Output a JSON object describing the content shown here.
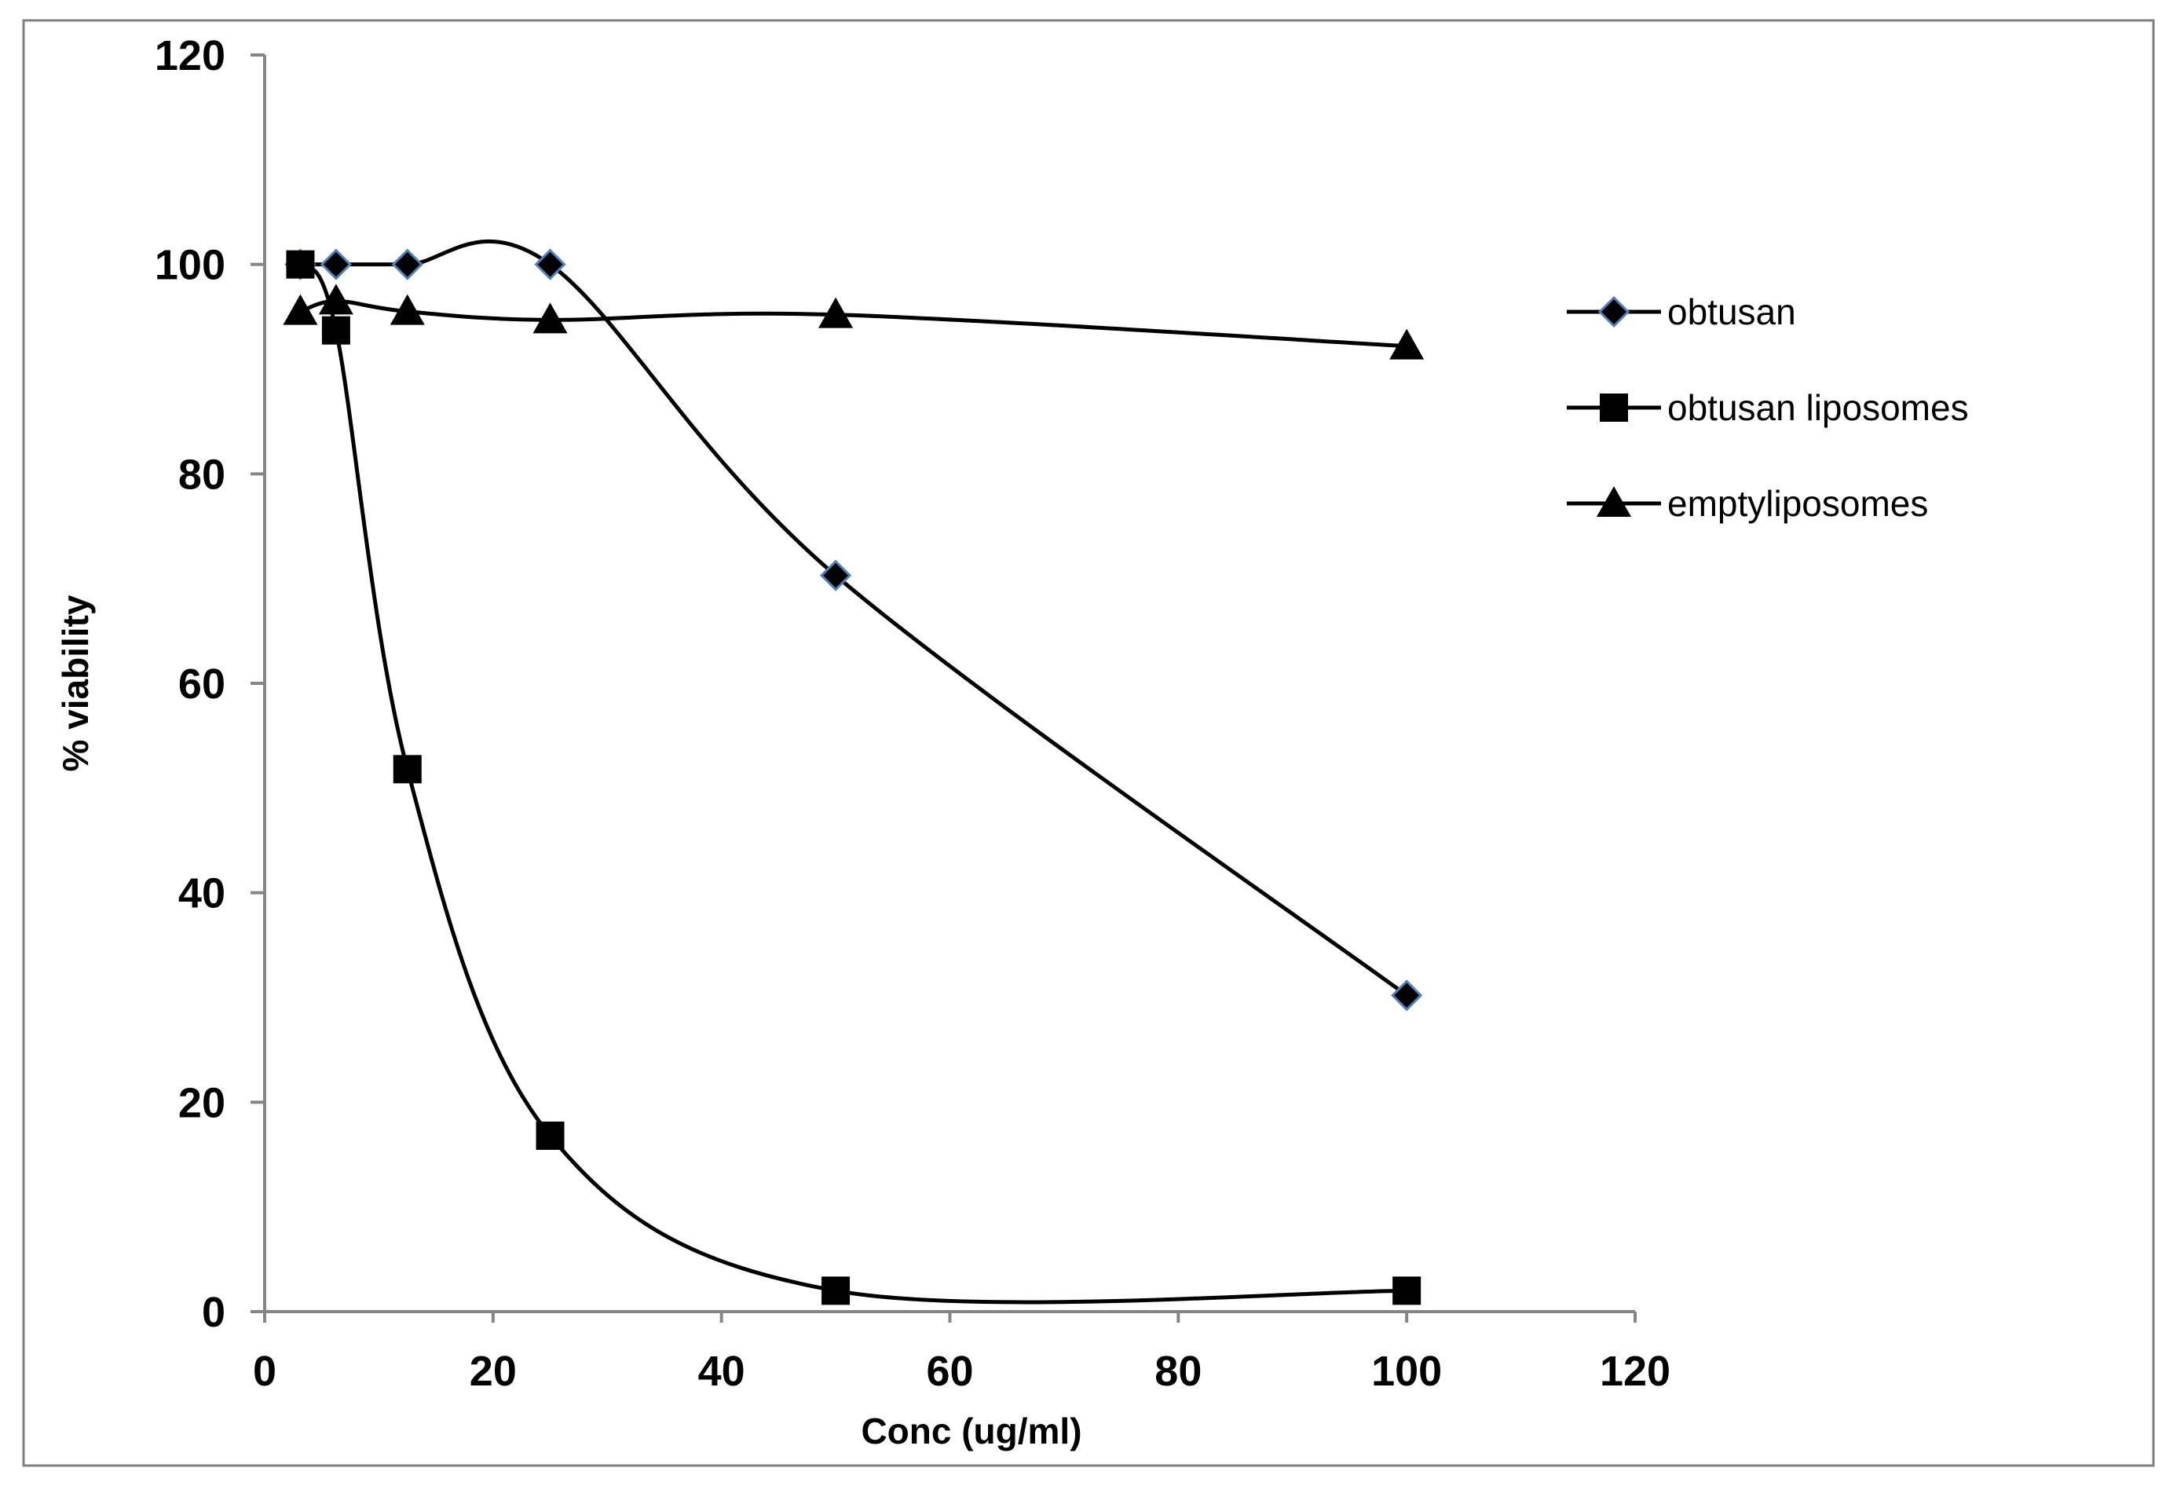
{
  "chart_data": {
    "type": "line",
    "title": "",
    "xlabel": "Conc (ug/ml)",
    "ylabel": "% viability",
    "xlim": [
      0,
      120
    ],
    "ylim": [
      0,
      120
    ],
    "xticks": [
      0,
      20,
      40,
      60,
      80,
      100,
      120
    ],
    "yticks": [
      0,
      20,
      40,
      60,
      80,
      100,
      120
    ],
    "grid": false,
    "legend_position": "right",
    "series": [
      {
        "name": "obtusan",
        "marker": "diamond",
        "x": [
          3.125,
          6.25,
          12.5,
          25,
          50,
          100
        ],
        "y": [
          100,
          100,
          100,
          100,
          70.3,
          30.2
        ]
      },
      {
        "name": "obtusan liposomes",
        "marker": "square",
        "x": [
          3.125,
          6.25,
          12.5,
          25,
          50,
          100
        ],
        "y": [
          100,
          93.7,
          51.8,
          16.8,
          2,
          2
        ]
      },
      {
        "name": "emptyliposomes",
        "marker": "triangle",
        "x": [
          3.125,
          6.25,
          12.5,
          25,
          50,
          100
        ],
        "y": [
          95.5,
          96.5,
          95.5,
          94.7,
          95.2,
          92.2
        ]
      }
    ],
    "colors": {
      "line": "#000000",
      "diamond_outline": "#4f81bd",
      "frame": "#7f7f7f",
      "axis": "#868686"
    }
  }
}
